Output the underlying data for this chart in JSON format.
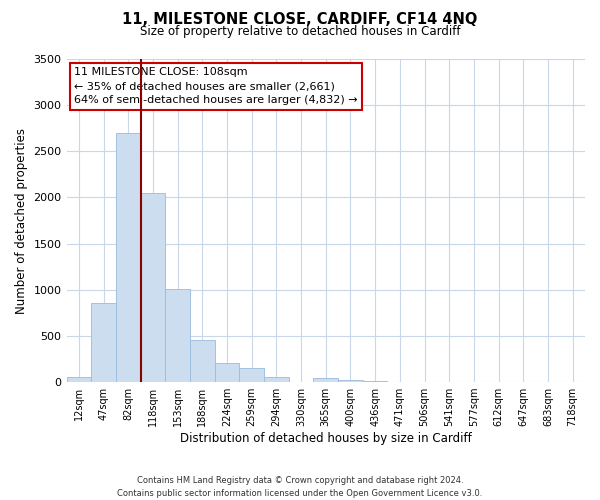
{
  "title": "11, MILESTONE CLOSE, CARDIFF, CF14 4NQ",
  "subtitle": "Size of property relative to detached houses in Cardiff",
  "xlabel": "Distribution of detached houses by size in Cardiff",
  "ylabel": "Number of detached properties",
  "bar_labels": [
    "12sqm",
    "47sqm",
    "82sqm",
    "118sqm",
    "153sqm",
    "188sqm",
    "224sqm",
    "259sqm",
    "294sqm",
    "330sqm",
    "365sqm",
    "400sqm",
    "436sqm",
    "471sqm",
    "506sqm",
    "541sqm",
    "577sqm",
    "612sqm",
    "647sqm",
    "683sqm",
    "718sqm"
  ],
  "bar_values": [
    55,
    860,
    2700,
    2050,
    1010,
    455,
    210,
    148,
    60,
    5,
    40,
    25,
    10,
    5,
    0,
    0,
    0,
    0,
    0,
    0,
    0
  ],
  "bar_color": "#ccddef",
  "bar_edge_color": "#99bbdd",
  "vline_x": 2.5,
  "vline_color": "#8b0000",
  "ylim": [
    0,
    3500
  ],
  "yticks": [
    0,
    500,
    1000,
    1500,
    2000,
    2500,
    3000,
    3500
  ],
  "annotation_title": "11 MILESTONE CLOSE: 108sqm",
  "annotation_line1": "← 35% of detached houses are smaller (2,661)",
  "annotation_line2": "64% of semi-detached houses are larger (4,832) →",
  "annotation_box_color": "#ffffff",
  "annotation_box_edge": "#cc0000",
  "footer_line1": "Contains HM Land Registry data © Crown copyright and database right 2024.",
  "footer_line2": "Contains public sector information licensed under the Open Government Licence v3.0.",
  "background_color": "#ffffff",
  "grid_color": "#c8d8e8"
}
